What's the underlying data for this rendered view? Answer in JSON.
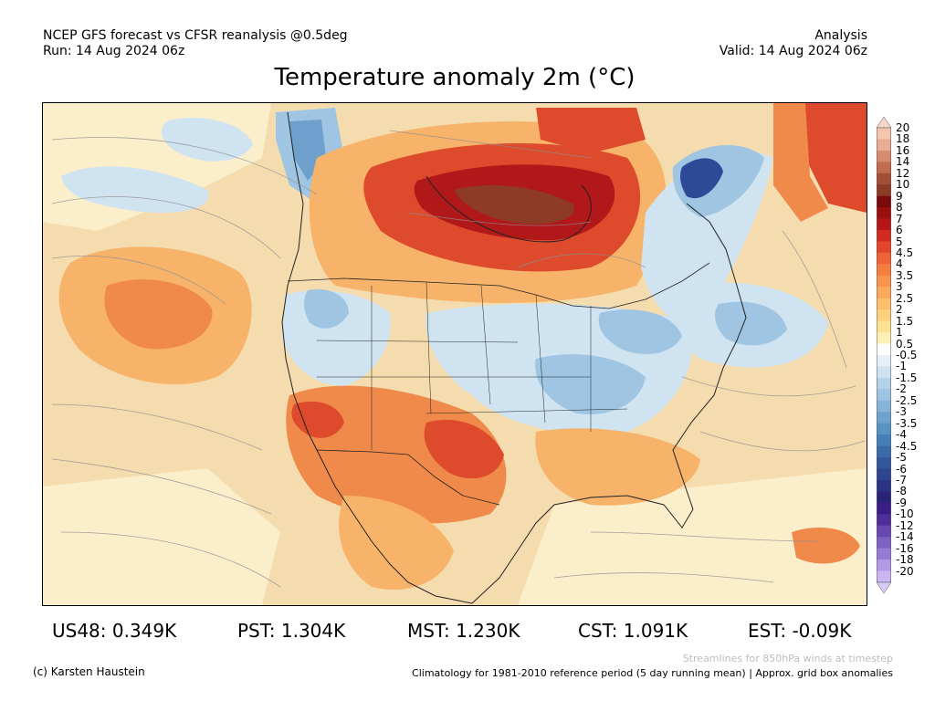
{
  "header": {
    "line1_left": "NCEP GFS forecast vs CFSR reanalysis @0.5deg",
    "line2_left": "Run: 14 Aug 2024 06z",
    "line1_right": "Analysis",
    "line2_right": "Valid: 14 Aug 2024 06z"
  },
  "title": "Temperature anomaly 2m (°C)",
  "colorbar": {
    "labels": [
      "20",
      "18",
      "16",
      "14",
      "12",
      "10",
      "9",
      "8",
      "7",
      "6",
      "5",
      "4.5",
      "4",
      "3.5",
      "3",
      "2.5",
      "2",
      "1.5",
      "1",
      "0.5",
      "-0.5",
      "-1",
      "-1.5",
      "-2",
      "-2.5",
      "-3",
      "-3.5",
      "-4",
      "-4.5",
      "-5",
      "-6",
      "-7",
      "-8",
      "-9",
      "-10",
      "-12",
      "-14",
      "-16",
      "-18",
      "-20"
    ],
    "colors": [
      "#f4c6b0",
      "#e8ad93",
      "#d68c70",
      "#bf6c50",
      "#a24f37",
      "#8a3b26",
      "#7a0a0a",
      "#9a0f0f",
      "#b81616",
      "#d22a1e",
      "#e2452a",
      "#ee6436",
      "#f47d40",
      "#f8944c",
      "#fba95c",
      "#fcbd6c",
      "#fdd07e",
      "#fde192",
      "#fdf0b4",
      "#ffffff",
      "#e6f0f8",
      "#cde1f0",
      "#b3d2e8",
      "#9cc3e0",
      "#86b4d8",
      "#6ea3ce",
      "#5892c2",
      "#457fb6",
      "#3a6aa8",
      "#34579c",
      "#2e4590",
      "#2a3484",
      "#2a2478",
      "#3a1e86",
      "#4e2e9a",
      "#6648b0",
      "#7e62c4",
      "#977cd6",
      "#b29ae6",
      "#cbb8f2"
    ],
    "top_color": "#f6d7c8",
    "bottom_color": "#d8ccf6"
  },
  "stats": [
    {
      "label": "US48: 0.349K"
    },
    {
      "label": "PST: 1.304K"
    },
    {
      "label": "MST: 1.230K"
    },
    {
      "label": "CST: 1.091K"
    },
    {
      "label": "EST: -0.09K"
    }
  ],
  "footer": {
    "credit": "(c) Karsten Haustein",
    "streamline_note": "Streamlines for 850hPa winds at timestep",
    "climatology_note": "Climatology for 1981-2010 reference period (5 day running mean) | Approx. grid box anomalies"
  },
  "map": {
    "region": "North America",
    "field": "2m temperature anomaly",
    "overlay": "850hPa streamlines",
    "colors": {
      "base": "#f5dcae",
      "pale": "#fbeecb",
      "light_blue": "#cfe3f1",
      "blue": "#9fc5e2",
      "mid_blue": "#6f9fcc",
      "deep_blue": "#2c4a98",
      "orange": "#f7b36a",
      "dark_orange": "#ef8a4a",
      "red": "#dd4b2c",
      "dark_red": "#b0181a",
      "brown": "#8e3b26",
      "land_line": "#222222",
      "streamline": "#8e8e8e"
    }
  }
}
